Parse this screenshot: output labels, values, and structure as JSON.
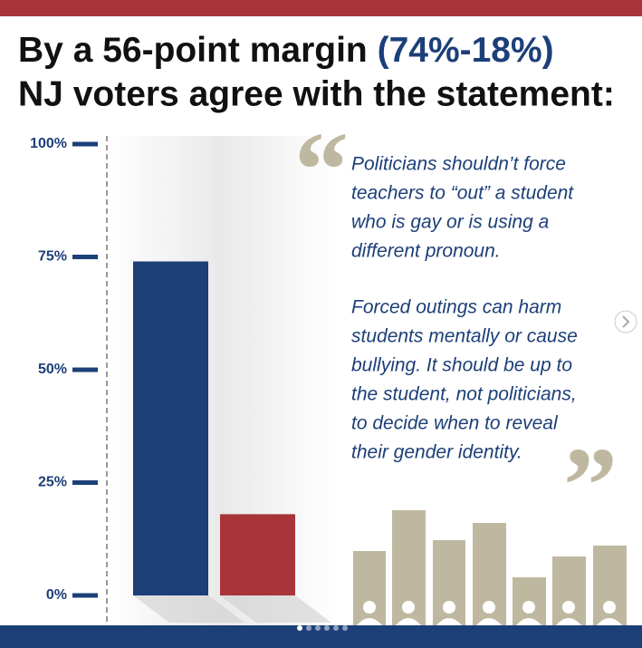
{
  "chart_data": {
    "type": "bar",
    "title": {
      "lead": "By a 56-point margin",
      "highlight": "(74%-18%)",
      "line2": "NJ voters agree with the statement:"
    },
    "categories": [
      null,
      null
    ],
    "values": [
      74,
      18
    ],
    "colors": [
      "#1c3f78",
      "#a8343a"
    ],
    "ylim": [
      0,
      100
    ],
    "yticks": [
      {
        "value": 0,
        "label": "0%"
      },
      {
        "value": 25,
        "label": "25%"
      },
      {
        "value": 50,
        "label": "50%"
      },
      {
        "value": 75,
        "label": "75%"
      },
      {
        "value": 100,
        "label": "100%"
      }
    ],
    "quote": [
      [
        "Politicians shouldn’t force",
        "teachers to “out” a student",
        "who is gay or is using a",
        "different pronoun."
      ],
      [
        "Forced outings can harm",
        "students mentally or cause",
        "bullying. It should be up to",
        "the student, not politicians,",
        "to decide when to reveal",
        "their gender identity."
      ]
    ]
  }
}
